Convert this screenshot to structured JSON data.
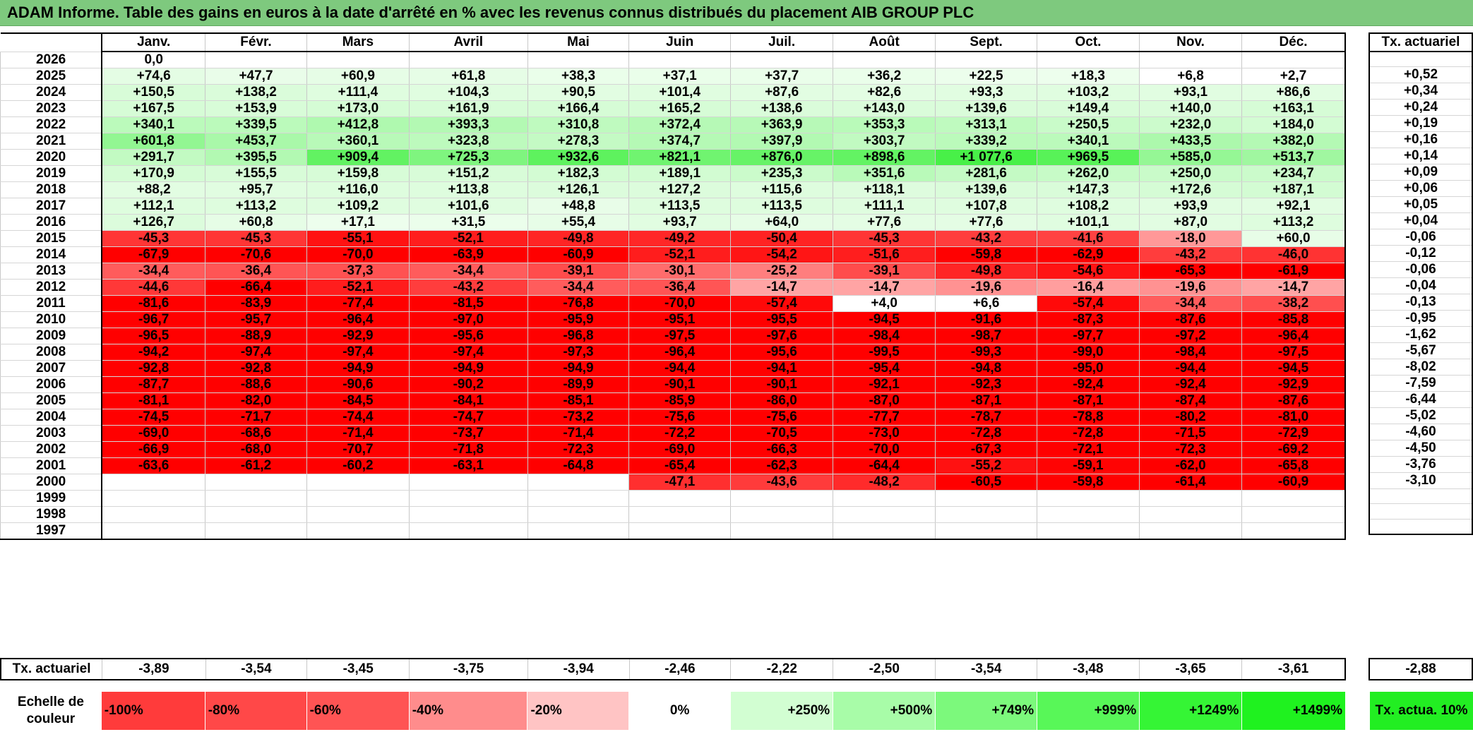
{
  "title": "ADAM Informe. Table des gains en euros à la date d'arrêté en % avec les revenus connus distribués du placement AIB GROUP PLC",
  "chart_data": {
    "type": "table",
    "months": [
      "Janv.",
      "Févr.",
      "Mars",
      "Avril",
      "Mai",
      "Juin",
      "Juil.",
      "Août",
      "Sept.",
      "Oct.",
      "Nov.",
      "Déc."
    ],
    "side_header": "Tx. actuariel",
    "rows": [
      {
        "year": "2026",
        "values": [
          "0,0",
          "",
          "",
          "",
          "",
          "",
          "",
          "",
          "",
          "",
          "",
          ""
        ],
        "tx": ""
      },
      {
        "year": "2025",
        "values": [
          "+74,6",
          "+47,7",
          "+60,9",
          "+61,8",
          "+38,3",
          "+37,1",
          "+37,7",
          "+36,2",
          "+22,5",
          "+18,3",
          "+6,8",
          "+2,7"
        ],
        "tx": "+0,52"
      },
      {
        "year": "2024",
        "values": [
          "+150,5",
          "+138,2",
          "+111,4",
          "+104,3",
          "+90,5",
          "+101,4",
          "+87,6",
          "+82,6",
          "+93,3",
          "+103,2",
          "+93,1",
          "+86,6"
        ],
        "tx": "+0,34"
      },
      {
        "year": "2023",
        "values": [
          "+167,5",
          "+153,9",
          "+173,0",
          "+161,9",
          "+166,4",
          "+165,2",
          "+138,6",
          "+143,0",
          "+139,6",
          "+149,4",
          "+140,0",
          "+163,1"
        ],
        "tx": "+0,24"
      },
      {
        "year": "2022",
        "values": [
          "+340,1",
          "+339,5",
          "+412,8",
          "+393,3",
          "+310,8",
          "+372,4",
          "+363,9",
          "+353,3",
          "+313,1",
          "+250,5",
          "+232,0",
          "+184,0"
        ],
        "tx": "+0,19"
      },
      {
        "year": "2021",
        "values": [
          "+601,8",
          "+453,7",
          "+360,1",
          "+323,8",
          "+278,3",
          "+374,7",
          "+397,9",
          "+303,7",
          "+339,2",
          "+340,1",
          "+433,5",
          "+382,0"
        ],
        "tx": "+0,16"
      },
      {
        "year": "2020",
        "values": [
          "+291,7",
          "+395,5",
          "+909,4",
          "+725,3",
          "+932,6",
          "+821,1",
          "+876,0",
          "+898,6",
          "+1 077,6",
          "+969,5",
          "+585,0",
          "+513,7"
        ],
        "tx": "+0,14"
      },
      {
        "year": "2019",
        "values": [
          "+170,9",
          "+155,5",
          "+159,8",
          "+151,2",
          "+182,3",
          "+189,1",
          "+235,3",
          "+351,6",
          "+281,6",
          "+262,0",
          "+250,0",
          "+234,7"
        ],
        "tx": "+0,09"
      },
      {
        "year": "2018",
        "values": [
          "+88,2",
          "+95,7",
          "+116,0",
          "+113,8",
          "+126,1",
          "+127,2",
          "+115,6",
          "+118,1",
          "+139,6",
          "+147,3",
          "+172,6",
          "+187,1"
        ],
        "tx": "+0,06"
      },
      {
        "year": "2017",
        "values": [
          "+112,1",
          "+113,2",
          "+109,2",
          "+101,6",
          "+48,8",
          "+113,5",
          "+113,5",
          "+111,1",
          "+107,8",
          "+108,2",
          "+93,9",
          "+92,1"
        ],
        "tx": "+0,05"
      },
      {
        "year": "2016",
        "values": [
          "+126,7",
          "+60,8",
          "+17,1",
          "+31,5",
          "+55,4",
          "+93,7",
          "+64,0",
          "+77,6",
          "+77,6",
          "+101,1",
          "+87,0",
          "+113,2"
        ],
        "tx": "+0,04"
      },
      {
        "year": "2015",
        "values": [
          "-45,3",
          "-45,3",
          "-55,1",
          "-52,1",
          "-49,8",
          "-49,2",
          "-50,4",
          "-45,3",
          "-43,2",
          "-41,6",
          "-18,0",
          "+60,0"
        ],
        "tx": "-0,06"
      },
      {
        "year": "2014",
        "values": [
          "-67,9",
          "-70,6",
          "-70,0",
          "-63,9",
          "-60,9",
          "-52,1",
          "-54,2",
          "-51,6",
          "-59,8",
          "-62,9",
          "-43,2",
          "-46,0"
        ],
        "tx": "-0,12"
      },
      {
        "year": "2013",
        "values": [
          "-34,4",
          "-36,4",
          "-37,3",
          "-34,4",
          "-39,1",
          "-30,1",
          "-25,2",
          "-39,1",
          "-49,8",
          "-54,6",
          "-65,3",
          "-61,9"
        ],
        "tx": "-0,06"
      },
      {
        "year": "2012",
        "values": [
          "-44,6",
          "-66,4",
          "-52,1",
          "-43,2",
          "-34,4",
          "-36,4",
          "-14,7",
          "-14,7",
          "-19,6",
          "-16,4",
          "-19,6",
          "-14,7"
        ],
        "tx": "-0,04"
      },
      {
        "year": "2011",
        "values": [
          "-81,6",
          "-83,9",
          "-77,4",
          "-81,5",
          "-76,8",
          "-70,0",
          "-57,4",
          "+4,0",
          "+6,6",
          "-57,4",
          "-34,4",
          "-38,2"
        ],
        "tx": "-0,13"
      },
      {
        "year": "2010",
        "values": [
          "-96,7",
          "-95,7",
          "-96,4",
          "-97,0",
          "-95,9",
          "-95,1",
          "-95,5",
          "-94,5",
          "-91,6",
          "-87,3",
          "-87,6",
          "-85,8"
        ],
        "tx": "-0,95"
      },
      {
        "year": "2009",
        "values": [
          "-96,5",
          "-88,9",
          "-92,9",
          "-95,6",
          "-96,8",
          "-97,5",
          "-97,6",
          "-98,4",
          "-98,7",
          "-97,7",
          "-97,2",
          "-96,4"
        ],
        "tx": "-1,62"
      },
      {
        "year": "2008",
        "values": [
          "-94,2",
          "-97,4",
          "-97,4",
          "-97,4",
          "-97,3",
          "-96,4",
          "-95,6",
          "-99,5",
          "-99,3",
          "-99,0",
          "-98,4",
          "-97,5"
        ],
        "tx": "-5,67"
      },
      {
        "year": "2007",
        "values": [
          "-92,8",
          "-92,8",
          "-94,9",
          "-94,9",
          "-94,9",
          "-94,4",
          "-94,1",
          "-95,4",
          "-94,8",
          "-95,0",
          "-94,4",
          "-94,5"
        ],
        "tx": "-8,02"
      },
      {
        "year": "2006",
        "values": [
          "-87,7",
          "-88,6",
          "-90,6",
          "-90,2",
          "-89,9",
          "-90,1",
          "-90,1",
          "-92,1",
          "-92,3",
          "-92,4",
          "-92,4",
          "-92,9"
        ],
        "tx": "-7,59"
      },
      {
        "year": "2005",
        "values": [
          "-81,1",
          "-82,0",
          "-84,5",
          "-84,1",
          "-85,1",
          "-85,9",
          "-86,0",
          "-87,0",
          "-87,1",
          "-87,1",
          "-87,4",
          "-87,6"
        ],
        "tx": "-6,44"
      },
      {
        "year": "2004",
        "values": [
          "-74,5",
          "-71,7",
          "-74,4",
          "-74,7",
          "-73,2",
          "-75,6",
          "-75,6",
          "-77,7",
          "-78,7",
          "-78,8",
          "-80,2",
          "-81,0"
        ],
        "tx": "-5,02"
      },
      {
        "year": "2003",
        "values": [
          "-69,0",
          "-68,6",
          "-71,4",
          "-73,7",
          "-71,4",
          "-72,2",
          "-70,5",
          "-73,0",
          "-72,8",
          "-72,8",
          "-71,5",
          "-72,9"
        ],
        "tx": "-4,60"
      },
      {
        "year": "2002",
        "values": [
          "-66,9",
          "-68,0",
          "-70,7",
          "-71,8",
          "-72,3",
          "-69,0",
          "-66,3",
          "-70,0",
          "-67,3",
          "-72,1",
          "-72,3",
          "-69,2"
        ],
        "tx": "-4,50"
      },
      {
        "year": "2001",
        "values": [
          "-63,6",
          "-61,2",
          "-60,2",
          "-63,1",
          "-64,8",
          "-65,4",
          "-62,3",
          "-64,4",
          "-55,2",
          "-59,1",
          "-62,0",
          "-65,8"
        ],
        "tx": "-3,76"
      },
      {
        "year": "2000",
        "values": [
          "",
          "",
          "",
          "",
          "",
          "-47,1",
          "-43,6",
          "-48,2",
          "-60,5",
          "-59,8",
          "-61,4",
          "-60,9"
        ],
        "tx": "-3,10"
      },
      {
        "year": "1999",
        "values": [
          "",
          "",
          "",
          "",
          "",
          "",
          "",
          "",
          "",
          "",
          "",
          ""
        ],
        "tx": ""
      },
      {
        "year": "1998",
        "values": [
          "",
          "",
          "",
          "",
          "",
          "",
          "",
          "",
          "",
          "",
          "",
          ""
        ],
        "tx": ""
      },
      {
        "year": "1997",
        "values": [
          "",
          "",
          "",
          "",
          "",
          "",
          "",
          "",
          "",
          "",
          "",
          ""
        ],
        "tx": ""
      }
    ],
    "bottom_label": "Tx. actuariel",
    "bottom_values": [
      "-3,89",
      "-3,54",
      "-3,45",
      "-3,75",
      "-3,94",
      "-2,46",
      "-2,22",
      "-2,50",
      "-3,54",
      "-3,48",
      "-3,65",
      "-3,61"
    ],
    "bottom_total": "-2,88"
  },
  "legend": {
    "label": "Echelle de couleur",
    "items": [
      {
        "text": "-100%",
        "color": "#ff3b3b",
        "align": "left"
      },
      {
        "text": "-80%",
        "color": "#ff4848",
        "align": "left"
      },
      {
        "text": "-60%",
        "color": "#ff5454",
        "align": "left"
      },
      {
        "text": "-40%",
        "color": "#ff8c8c",
        "align": "left"
      },
      {
        "text": "-20%",
        "color": "#ffc4c4",
        "align": "left"
      },
      {
        "text": "0%",
        "color": "#ffffff",
        "align": "center"
      },
      {
        "text": "+250%",
        "color": "#d2fed2",
        "align": "right"
      },
      {
        "text": "+500%",
        "color": "#a8fca8",
        "align": "right"
      },
      {
        "text": "+749%",
        "color": "#7cf97c",
        "align": "right"
      },
      {
        "text": "+999%",
        "color": "#58f758",
        "align": "right"
      },
      {
        "text": "+1249%",
        "color": "#35f535",
        "align": "right"
      },
      {
        "text": "+1499%",
        "color": "#1ff21f",
        "align": "right"
      }
    ],
    "tx_label": "Tx. actua. 10%",
    "tx_color": "#22ee22"
  },
  "colors": {
    "title_bar": "#7ec97e",
    "negative_max": "#ff0000",
    "positive_max": "#22ee22"
  }
}
